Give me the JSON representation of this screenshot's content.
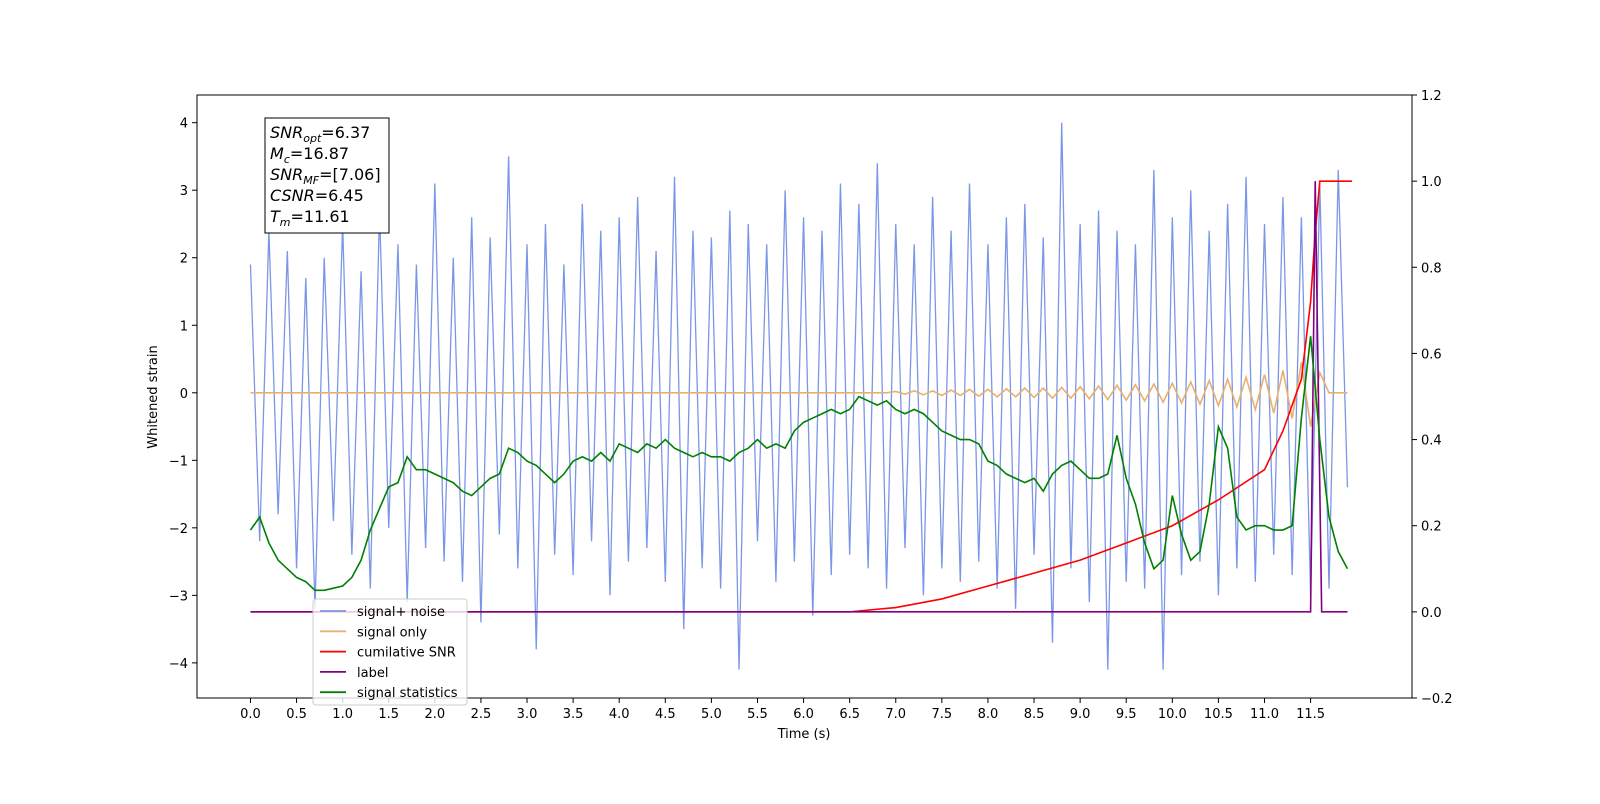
{
  "chart_data": {
    "type": "line",
    "xlabel": "Time (s)",
    "ylabel": "Whitened strain",
    "xlim": [
      -0.58,
      12.6
    ],
    "ylim": [
      -4.52,
      4.41
    ],
    "y2lim": [
      -0.2,
      1.2
    ],
    "xticks": [
      {
        "value": 0,
        "label": "0.0"
      },
      0.5,
      {
        "value": 1,
        "label": "1.0"
      },
      1.5,
      {
        "value": 2,
        "label": "2.0"
      },
      2.5,
      {
        "value": 3,
        "label": "3.0"
      },
      3.5,
      {
        "value": 4,
        "label": "4.0"
      },
      4.5,
      {
        "value": 5,
        "label": "5.0"
      },
      5.5,
      {
        "value": 6,
        "label": "6.0"
      },
      6.5,
      {
        "value": 7,
        "label": "7.0"
      },
      7.5,
      {
        "value": 8,
        "label": "8.0"
      },
      8.5,
      {
        "value": 9,
        "label": "9.0"
      },
      9.5,
      {
        "value": 10,
        "label": "10.0"
      },
      10.5,
      {
        "value": 11,
        "label": "11.0"
      },
      11.5
    ],
    "yticks": [
      {
        "value": -4,
        "label": "−4"
      },
      {
        "value": -3,
        "label": "−3"
      },
      {
        "value": -2,
        "label": "−2"
      },
      {
        "value": -1,
        "label": "−1"
      },
      0,
      1,
      2,
      3,
      4
    ],
    "y2ticks": [
      {
        "value": -0.2,
        "label": "−0.2"
      },
      {
        "value": 0,
        "label": "0.0"
      },
      0.2,
      0.4,
      0.6,
      0.8,
      {
        "value": 1,
        "label": "1.0"
      },
      1.2
    ],
    "x": [
      0,
      0.1,
      0.2,
      0.3,
      0.4,
      0.5,
      0.6,
      0.7,
      0.8,
      0.9,
      1,
      1.1,
      1.2,
      1.3,
      1.4,
      1.5,
      1.6,
      1.7,
      1.8,
      1.9,
      2,
      2.1,
      2.2,
      2.3,
      2.4,
      2.5,
      2.6,
      2.7,
      2.8,
      2.9,
      3,
      3.1,
      3.2,
      3.3,
      3.4,
      3.5,
      3.6,
      3.7,
      3.8,
      3.9,
      4,
      4.1,
      4.2,
      4.3,
      4.4,
      4.5,
      4.6,
      4.7,
      4.8,
      4.9,
      5,
      5.1,
      5.2,
      5.3,
      5.4,
      5.5,
      5.6,
      5.7,
      5.8,
      5.9,
      6,
      6.1,
      6.2,
      6.3,
      6.4,
      6.5,
      6.6,
      6.7,
      6.8,
      6.9,
      7,
      7.1,
      7.2,
      7.3,
      7.4,
      7.5,
      7.6,
      7.7,
      7.8,
      7.9,
      8,
      8.1,
      8.2,
      8.3,
      8.4,
      8.5,
      8.6,
      8.7,
      8.8,
      8.9,
      9,
      9.1,
      9.2,
      9.3,
      9.4,
      9.5,
      9.6,
      9.7,
      9.8,
      9.9,
      10,
      10.1,
      10.2,
      10.3,
      10.4,
      10.5,
      10.6,
      10.7,
      10.8,
      10.9,
      11,
      11.1,
      11.2,
      11.3,
      11.4,
      11.5,
      11.6,
      11.7,
      11.8,
      11.9
    ],
    "series": [
      {
        "name": "signal+ noise",
        "color": "#7b96e6",
        "values": [
          1.9,
          -2.2,
          2.4,
          -1.8,
          2.1,
          -2.6,
          1.7,
          -3.2,
          2.0,
          -1.9,
          2.5,
          -2.4,
          1.8,
          -2.9,
          2.7,
          -2.0,
          2.2,
          -3.1,
          1.9,
          -2.3,
          3.1,
          -2.5,
          2.0,
          -2.8,
          2.6,
          -3.4,
          2.3,
          -2.1,
          3.5,
          -2.6,
          2.2,
          -3.8,
          2.5,
          -2.4,
          1.9,
          -2.7,
          2.8,
          -2.2,
          2.4,
          -3.0,
          2.6,
          -2.5,
          2.9,
          -2.3,
          2.1,
          -2.8,
          3.2,
          -3.5,
          2.4,
          -2.6,
          2.3,
          -2.9,
          2.7,
          -4.1,
          2.5,
          -2.2,
          2.2,
          -2.8,
          3.0,
          -2.5,
          2.6,
          -3.3,
          2.4,
          -2.7,
          3.1,
          -2.4,
          2.8,
          -2.6,
          3.4,
          -2.9,
          2.5,
          -2.3,
          2.2,
          -3.0,
          2.9,
          -2.6,
          2.4,
          -2.8,
          3.1,
          -2.5,
          2.2,
          -2.9,
          2.6,
          -3.2,
          2.8,
          -2.4,
          2.3,
          -3.7,
          4.0,
          -2.6,
          2.5,
          -3.1,
          2.7,
          -4.1,
          2.4,
          -2.8,
          2.2,
          -2.9,
          3.3,
          -4.1,
          2.6,
          -2.7,
          3.0,
          -2.5,
          2.4,
          -3.0,
          2.8,
          -2.6,
          3.2,
          -2.8,
          2.5,
          -2.4,
          2.9,
          -2.7,
          2.6,
          -3.0,
          3.1,
          -2.9,
          3.3,
          -1.4
        ]
      },
      {
        "name": "signal only",
        "color": "#e8b070",
        "values": [
          0,
          0,
          0,
          0,
          0,
          0,
          0,
          0,
          0,
          0,
          0,
          0,
          0,
          0,
          0,
          0,
          0,
          0,
          0,
          0,
          0,
          0,
          0,
          0,
          0,
          0,
          0,
          0,
          0,
          0,
          0,
          0,
          0,
          0,
          0,
          0,
          0,
          0,
          0,
          0,
          0,
          0,
          0,
          0,
          0,
          0,
          0,
          0,
          0,
          0,
          0,
          0,
          0,
          0,
          0,
          0,
          0,
          0,
          0,
          0,
          0,
          0,
          0,
          0,
          0,
          0,
          0,
          0,
          0,
          0,
          0.02,
          -0.02,
          0.03,
          -0.03,
          0.03,
          -0.04,
          0.04,
          -0.04,
          0.05,
          -0.05,
          0.05,
          -0.06,
          0.06,
          -0.06,
          0.07,
          -0.07,
          0.07,
          -0.08,
          0.08,
          -0.08,
          0.09,
          -0.09,
          0.1,
          -0.1,
          0.11,
          -0.11,
          0.12,
          -0.12,
          0.13,
          -0.14,
          0.14,
          -0.15,
          0.16,
          -0.17,
          0.18,
          -0.19,
          0.2,
          -0.21,
          0.23,
          -0.25,
          0.27,
          -0.3,
          0.33,
          -0.38,
          0.45,
          -0.5,
          0.3,
          0,
          0,
          0
        ]
      },
      {
        "name": "cumilative SNR",
        "color": "#ff0000",
        "axis": "y2",
        "x": [
          0,
          6.5,
          7,
          7.5,
          8,
          8.5,
          9,
          9.5,
          10,
          10.5,
          11,
          11.2,
          11.4,
          11.5,
          11.55,
          11.6,
          11.95
        ],
        "values": [
          0,
          0,
          0.01,
          0.03,
          0.06,
          0.09,
          0.12,
          0.16,
          0.2,
          0.26,
          0.33,
          0.42,
          0.54,
          0.72,
          0.88,
          1.0,
          1.0
        ]
      },
      {
        "name": "label",
        "color": "#800080",
        "axis": "y2",
        "x": [
          0,
          11.5,
          11.55,
          11.62,
          11.9
        ],
        "values": [
          0,
          0,
          1,
          0,
          0
        ]
      },
      {
        "name": "signal statistics",
        "color": "#008000",
        "axis": "y2",
        "values": [
          0.19,
          0.22,
          0.16,
          0.12,
          0.1,
          0.08,
          0.07,
          0.05,
          0.05,
          0.055,
          0.06,
          0.08,
          0.12,
          0.19,
          0.24,
          0.29,
          0.3,
          0.36,
          0.33,
          0.33,
          0.32,
          0.31,
          0.3,
          0.28,
          0.27,
          0.29,
          0.31,
          0.32,
          0.38,
          0.37,
          0.35,
          0.34,
          0.32,
          0.3,
          0.32,
          0.35,
          0.36,
          0.35,
          0.37,
          0.35,
          0.39,
          0.38,
          0.37,
          0.39,
          0.38,
          0.4,
          0.38,
          0.37,
          0.36,
          0.37,
          0.36,
          0.36,
          0.35,
          0.37,
          0.38,
          0.4,
          0.38,
          0.39,
          0.38,
          0.42,
          0.44,
          0.45,
          0.46,
          0.47,
          0.46,
          0.47,
          0.5,
          0.49,
          0.48,
          0.49,
          0.47,
          0.46,
          0.47,
          0.46,
          0.44,
          0.42,
          0.41,
          0.4,
          0.4,
          0.39,
          0.35,
          0.34,
          0.32,
          0.31,
          0.3,
          0.31,
          0.28,
          0.32,
          0.34,
          0.35,
          0.33,
          0.31,
          0.31,
          0.32,
          0.41,
          0.31,
          0.25,
          0.16,
          0.1,
          0.12,
          0.27,
          0.18,
          0.12,
          0.14,
          0.25,
          0.43,
          0.38,
          0.22,
          0.19,
          0.2,
          0.2,
          0.19,
          0.19,
          0.2,
          0.45,
          0.64,
          0.4,
          0.22,
          0.14,
          0.1
        ]
      }
    ],
    "annotations": [
      {
        "symbol": "SNR",
        "subscript": "opt",
        "value": "=6.37"
      },
      {
        "symbol": "M",
        "subscript": "c",
        "value": "=16.87"
      },
      {
        "symbol": "SNR",
        "subscript": "MF",
        "value": "=[7.06]"
      },
      {
        "symbol": "CSNR",
        "value": "=6.45"
      },
      {
        "symbol": "T",
        "subscript": "m",
        "value": "=11.61"
      }
    ]
  }
}
